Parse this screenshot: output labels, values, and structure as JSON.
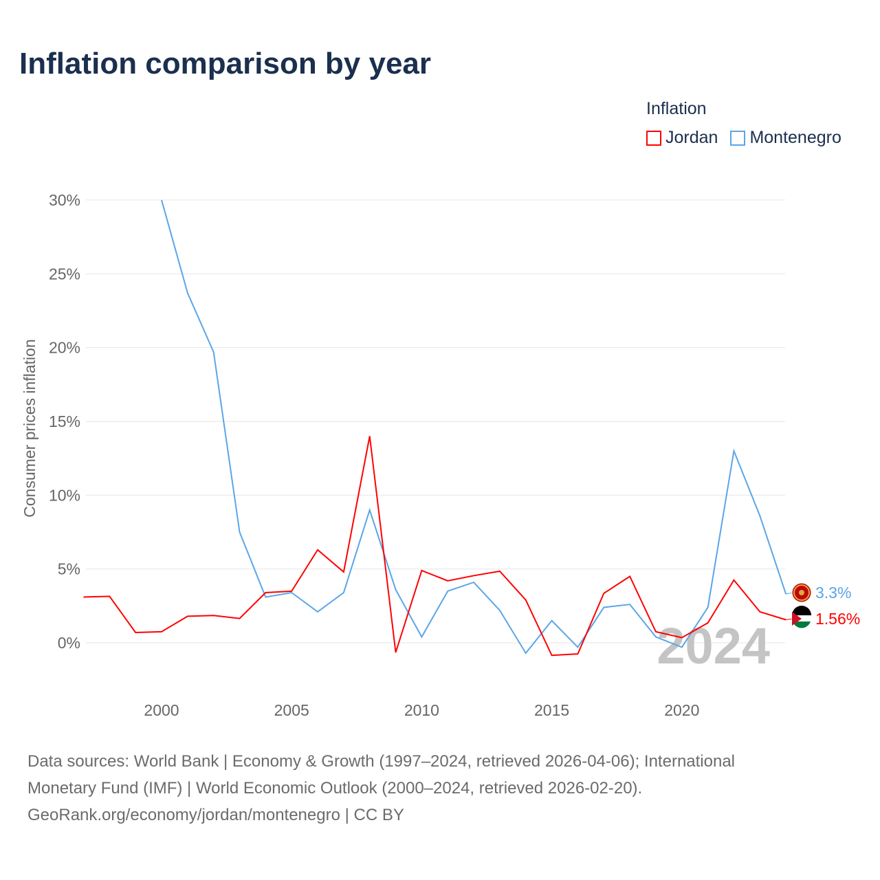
{
  "title": "Inflation comparison by year",
  "legend": {
    "title": "Inflation",
    "items": [
      {
        "label": "Jordan",
        "color": "#ff0000"
      },
      {
        "label": "Montenegro",
        "color": "#5aa5e8"
      }
    ]
  },
  "footer": {
    "line1": "Data sources: World Bank | Economy & Growth (1997–2024, retrieved 2026-04-06); International",
    "line2": "Monetary Fund (IMF) | World Economic Outlook (2000–2024, retrieved 2026-02-20).",
    "line3": "GeoRank.org/economy/jordan/montenegro | CC BY"
  },
  "chart_data": {
    "type": "line",
    "title": "Inflation comparison by year",
    "ylabel": "Consumer prices inflation",
    "xlabel": "",
    "xlim": [
      1997,
      2024
    ],
    "ylim": [
      -3.5,
      31
    ],
    "yticks": [
      0,
      5,
      10,
      15,
      20,
      25,
      30
    ],
    "ytick_labels": [
      "0%",
      "5%",
      "10%",
      "15%",
      "20%",
      "25%",
      "30%"
    ],
    "xticks": [
      2000,
      2005,
      2010,
      2015,
      2020
    ],
    "xtick_labels": [
      "2000",
      "2005",
      "2010",
      "2015",
      "2020"
    ],
    "watermark_year": "2024",
    "series": [
      {
        "name": "Jordan",
        "color": "#ff0000",
        "end_label": "1.56%",
        "x": [
          1997,
          1998,
          1999,
          2000,
          2001,
          2002,
          2003,
          2004,
          2005,
          2006,
          2007,
          2008,
          2009,
          2010,
          2011,
          2012,
          2013,
          2014,
          2015,
          2016,
          2017,
          2018,
          2019,
          2020,
          2021,
          2022,
          2023,
          2024
        ],
        "values": [
          3.1,
          3.15,
          0.7,
          0.75,
          1.8,
          1.85,
          1.65,
          3.4,
          3.5,
          6.3,
          4.8,
          14.0,
          -0.65,
          4.9,
          4.2,
          4.55,
          4.85,
          2.9,
          -0.85,
          -0.75,
          3.35,
          4.5,
          0.75,
          0.35,
          1.35,
          4.25,
          2.1,
          1.56
        ]
      },
      {
        "name": "Montenegro",
        "color": "#5aa5e8",
        "end_label": "3.3%",
        "x": [
          2000,
          2001,
          2002,
          2003,
          2004,
          2005,
          2006,
          2007,
          2008,
          2009,
          2010,
          2011,
          2012,
          2013,
          2014,
          2015,
          2016,
          2017,
          2018,
          2019,
          2020,
          2021,
          2022,
          2023,
          2024
        ],
        "values": [
          30.0,
          23.7,
          19.7,
          7.5,
          3.1,
          3.4,
          2.1,
          3.4,
          9.0,
          3.6,
          0.4,
          3.5,
          4.1,
          2.2,
          -0.7,
          1.5,
          -0.3,
          2.4,
          2.6,
          0.4,
          -0.3,
          2.4,
          13.0,
          8.6,
          3.3
        ]
      }
    ]
  }
}
